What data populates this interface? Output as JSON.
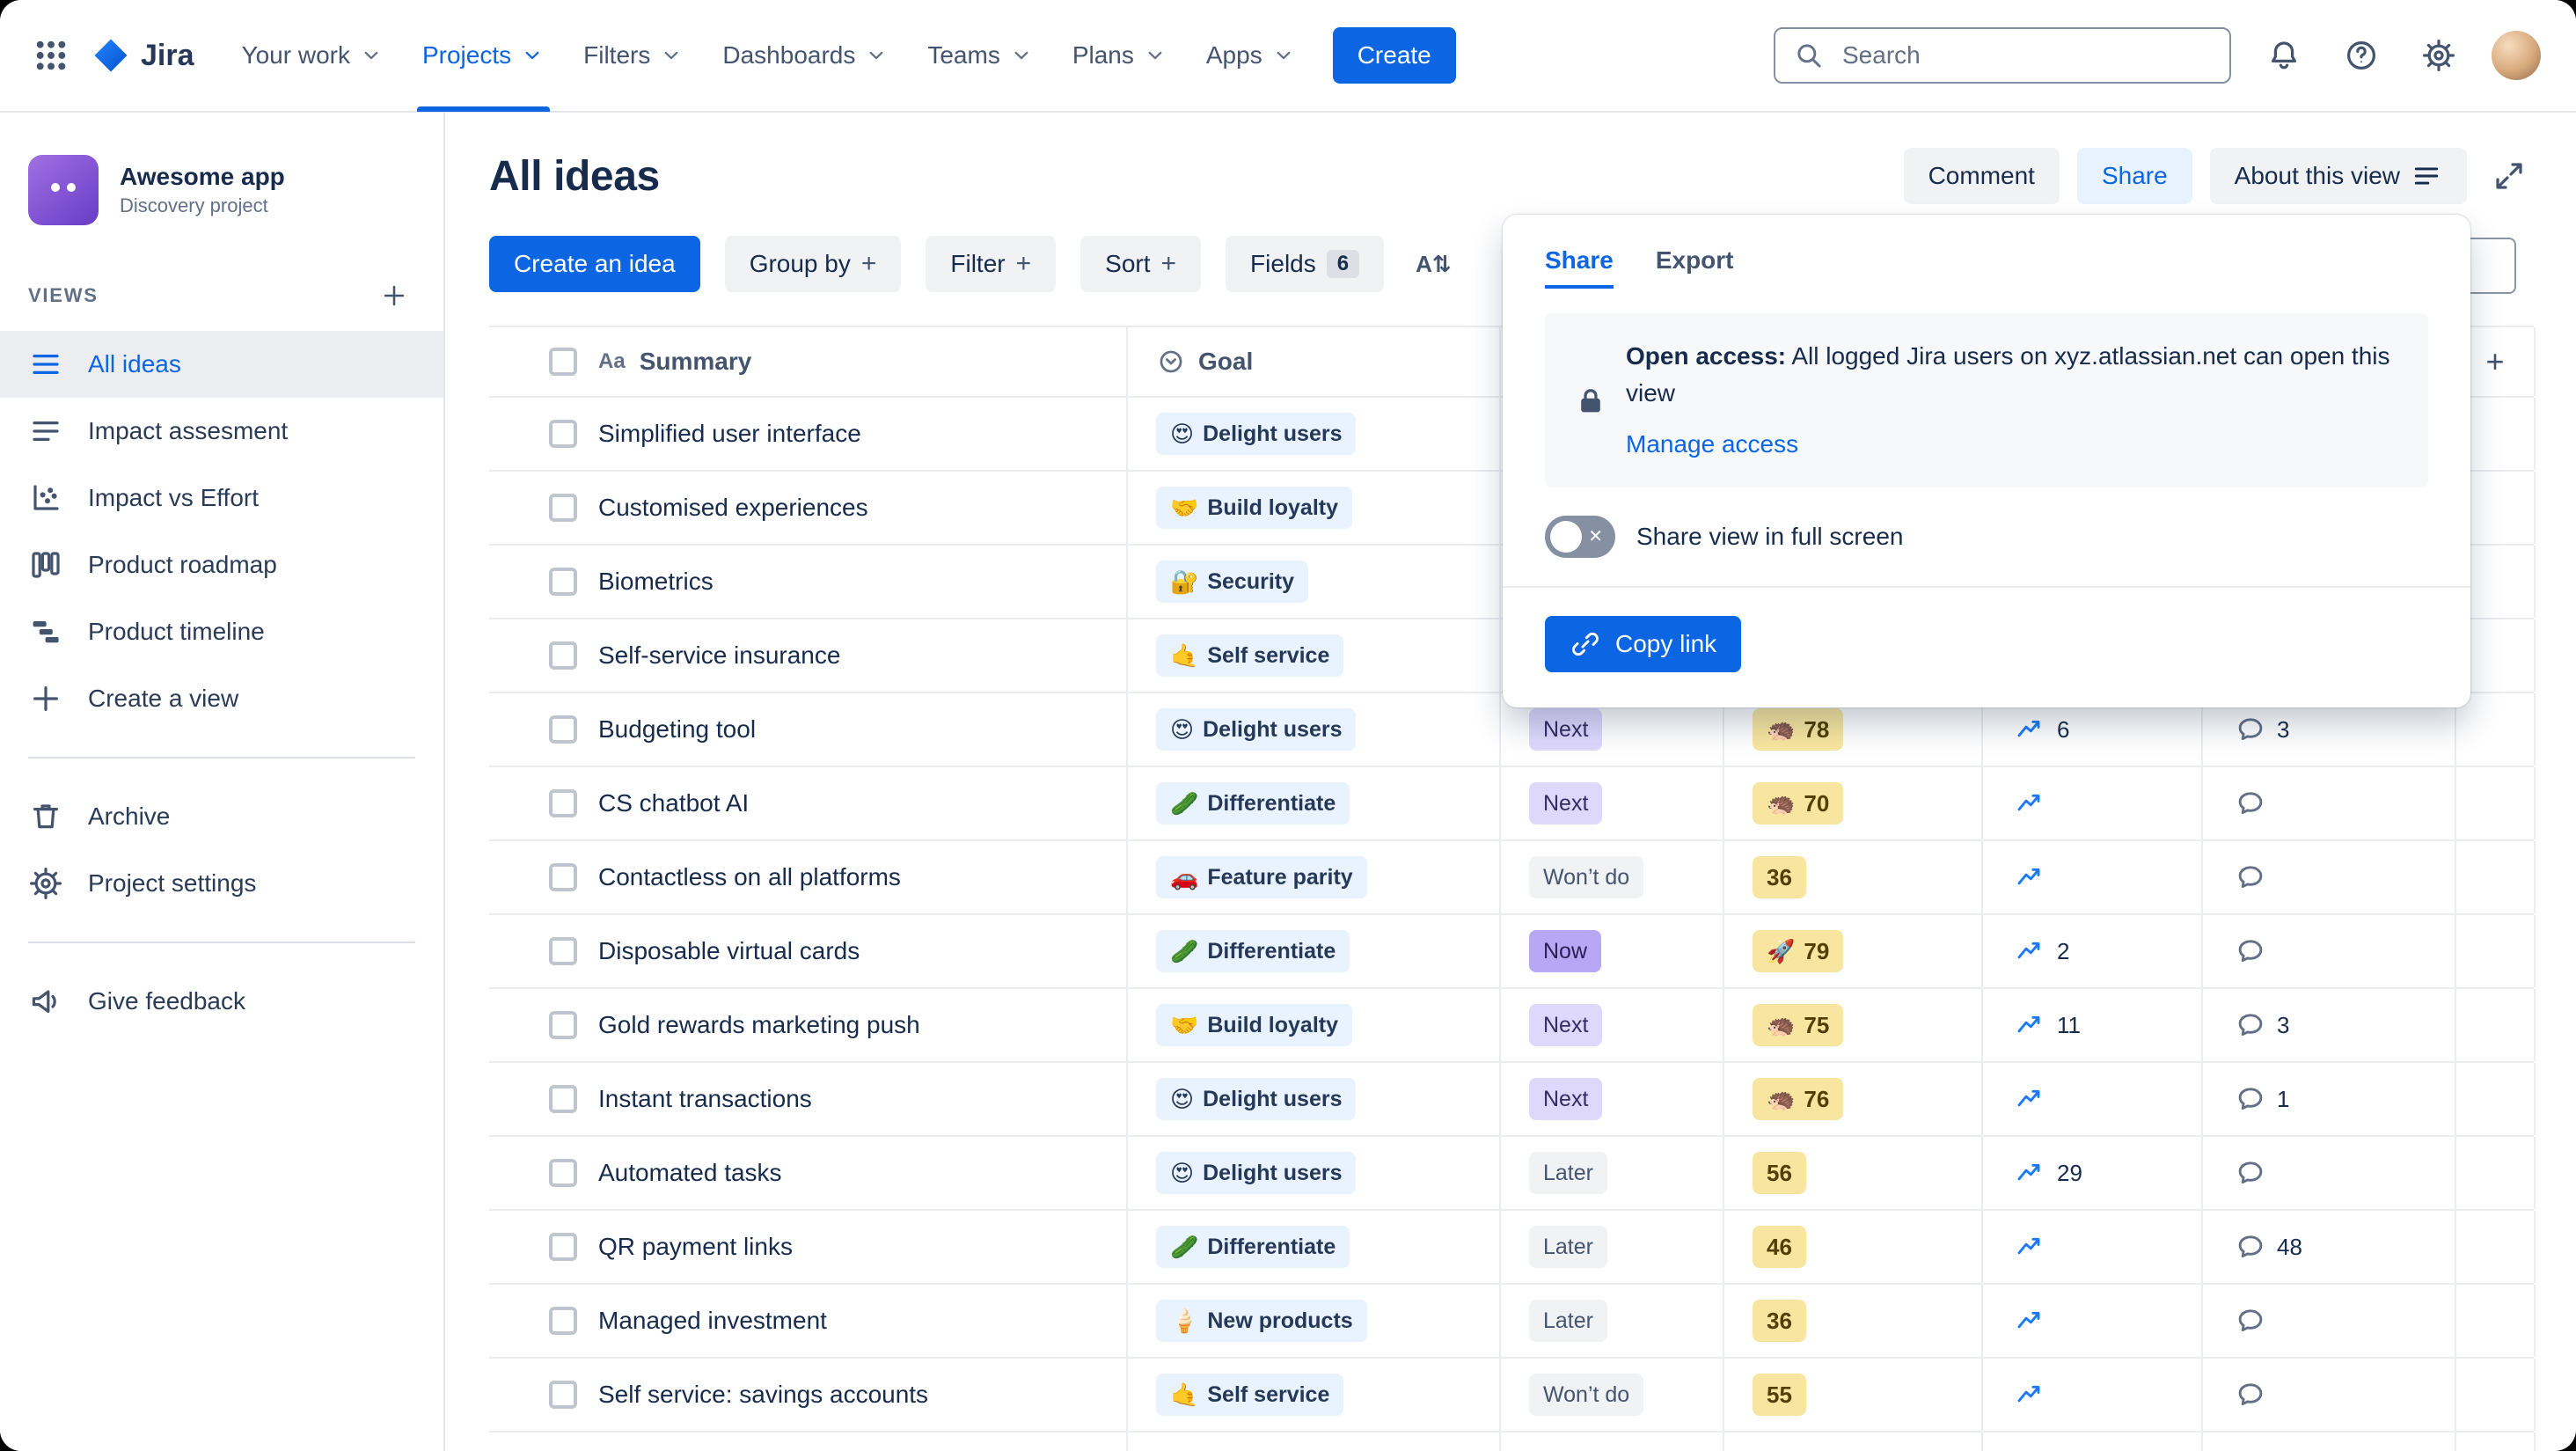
{
  "colors": {
    "accent_blue": "#0C66E4",
    "goal_chip_bg": "#E9F2FF",
    "score_chip_bg": "#F8E6A0",
    "status_next_bg": "#DFD8FD",
    "status_now_bg": "#B8A7F5",
    "status_later_bg": "#F1F2F4",
    "status_wontdo_bg": "#F1F2F4"
  },
  "glyphs": {
    "plus": "+",
    "close_x": "✕",
    "text_type": "Aa",
    "sort_az": "A⇅",
    "add_field": "+"
  },
  "nav": {
    "logo_label": "Jira",
    "items": [
      {
        "label": "Your work",
        "active": false
      },
      {
        "label": "Projects",
        "active": true
      },
      {
        "label": "Filters",
        "active": false
      },
      {
        "label": "Dashboards",
        "active": false
      },
      {
        "label": "Teams",
        "active": false
      },
      {
        "label": "Plans",
        "active": false
      },
      {
        "label": "Apps",
        "active": false
      }
    ],
    "create_label": "Create",
    "search_placeholder": "Search"
  },
  "sidebar": {
    "project_name": "Awesome app",
    "project_subtitle": "Discovery project",
    "views_heading": "VIEWS",
    "views": [
      {
        "label": "All ideas",
        "icon": "list",
        "selected": true
      },
      {
        "label": "Impact assesment",
        "icon": "rows",
        "selected": false
      },
      {
        "label": "Impact vs Effort",
        "icon": "scatter",
        "selected": false
      },
      {
        "label": "Product roadmap",
        "icon": "board",
        "selected": false
      },
      {
        "label": "Product timeline",
        "icon": "timeline",
        "selected": false
      },
      {
        "label": "Create a view",
        "icon": "plus",
        "selected": false
      }
    ],
    "tools": [
      {
        "label": "Archive",
        "icon": "trash"
      },
      {
        "label": "Project settings",
        "icon": "gear"
      }
    ],
    "feedback_label": "Give feedback"
  },
  "view_header": {
    "title": "All ideas",
    "comment_label": "Comment",
    "share_label": "Share",
    "about_label": "About this view"
  },
  "toolbar": {
    "create_idea_label": "Create an idea",
    "group_by_label": "Group by",
    "filter_label": "Filter",
    "sort_label": "Sort",
    "fields_label": "Fields",
    "fields_count": "6"
  },
  "share_popup": {
    "tabs": [
      "Share",
      "Export"
    ],
    "active_tab": "Share",
    "open_access_bold": "Open access:",
    "open_access_text": "All logged Jira users on xyz.atlassian.net can open this view",
    "manage_access_label": "Manage access",
    "fullscreen_toggle_label": "Share view in full screen",
    "fullscreen_toggle_on": false,
    "copy_link_label": "Copy link"
  },
  "table": {
    "summary_header": "Summary",
    "goal_header": "Goal",
    "rows": [
      {
        "summary": "Simplified user interface",
        "goal_emoji": "😍",
        "goal": "Delight users",
        "status": null,
        "score_emoji": null,
        "score": null,
        "trend": false,
        "trend_count": null,
        "comments": false,
        "comment_count": null
      },
      {
        "summary": "Customised experiences",
        "goal_emoji": "🤝",
        "goal": "Build loyalty",
        "status": null,
        "score_emoji": null,
        "score": null,
        "trend": false,
        "trend_count": null,
        "comments": false,
        "comment_count": null
      },
      {
        "summary": "Biometrics",
        "goal_emoji": "🔐",
        "goal": "Security",
        "status": null,
        "score_emoji": null,
        "score": null,
        "trend": false,
        "trend_count": null,
        "comments": false,
        "comment_count": null
      },
      {
        "summary": "Self-service insurance",
        "goal_emoji": "🤙",
        "goal": "Self service",
        "status": null,
        "score_emoji": null,
        "score": null,
        "trend": false,
        "trend_count": null,
        "comments": false,
        "comment_count": null
      },
      {
        "summary": "Budgeting tool",
        "goal_emoji": "😍",
        "goal": "Delight users",
        "status": "Next",
        "score_emoji": "🦔",
        "score": "78",
        "trend": true,
        "trend_count": "6",
        "comments": true,
        "comment_count": "3"
      },
      {
        "summary": "CS chatbot AI",
        "goal_emoji": "🥒",
        "goal": "Differentiate",
        "status": "Next",
        "score_emoji": "🦔",
        "score": "70",
        "trend": true,
        "trend_count": null,
        "comments": true,
        "comment_count": null
      },
      {
        "summary": "Contactless on all platforms",
        "goal_emoji": "🚗",
        "goal": "Feature parity",
        "status": "Won’t do",
        "score_emoji": null,
        "score": "36",
        "trend": true,
        "trend_count": null,
        "comments": true,
        "comment_count": null
      },
      {
        "summary": "Disposable virtual cards",
        "goal_emoji": "🥒",
        "goal": "Differentiate",
        "status": "Now",
        "score_emoji": "🚀",
        "score": "79",
        "trend": true,
        "trend_count": "2",
        "comments": true,
        "comment_count": null
      },
      {
        "summary": "Gold rewards marketing push",
        "goal_emoji": "🤝",
        "goal": "Build loyalty",
        "status": "Next",
        "score_emoji": "🦔",
        "score": "75",
        "trend": true,
        "trend_count": "11",
        "comments": true,
        "comment_count": "3"
      },
      {
        "summary": "Instant transactions",
        "goal_emoji": "😍",
        "goal": "Delight users",
        "status": "Next",
        "score_emoji": "🦔",
        "score": "76",
        "trend": true,
        "trend_count": null,
        "comments": true,
        "comment_count": "1"
      },
      {
        "summary": "Automated tasks",
        "goal_emoji": "😍",
        "goal": "Delight users",
        "status": "Later",
        "score_emoji": null,
        "score": "56",
        "trend": true,
        "trend_count": "29",
        "comments": true,
        "comment_count": null
      },
      {
        "summary": "QR payment links",
        "goal_emoji": "🥒",
        "goal": "Differentiate",
        "status": "Later",
        "score_emoji": null,
        "score": "46",
        "trend": true,
        "trend_count": null,
        "comments": true,
        "comment_count": "48"
      },
      {
        "summary": "Managed investment",
        "goal_emoji": "🍦",
        "goal": "New products",
        "status": "Later",
        "score_emoji": null,
        "score": "36",
        "trend": true,
        "trend_count": null,
        "comments": true,
        "comment_count": null
      },
      {
        "summary": "Self service: savings accounts",
        "goal_emoji": "🤙",
        "goal": "Self service",
        "status": "Won’t do",
        "score_emoji": null,
        "score": "55",
        "trend": true,
        "trend_count": null,
        "comments": true,
        "comment_count": null
      }
    ]
  }
}
